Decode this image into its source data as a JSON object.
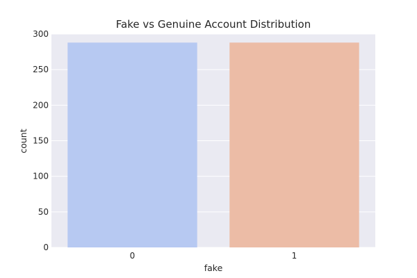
{
  "chart_data": {
    "type": "bar",
    "title": "Fake vs Genuine Account Distribution",
    "xlabel": "fake",
    "ylabel": "count",
    "categories": [
      "0",
      "1"
    ],
    "values": [
      288,
      288
    ],
    "colors": [
      "#b7c9f2",
      "#ecbca6"
    ],
    "plot_background": "#eaeaf2",
    "grid": true,
    "grid_color": "#ffffff",
    "ylim": [
      0,
      300
    ],
    "yticks": [
      "0",
      "50",
      "100",
      "150",
      "200",
      "250",
      "300"
    ]
  }
}
